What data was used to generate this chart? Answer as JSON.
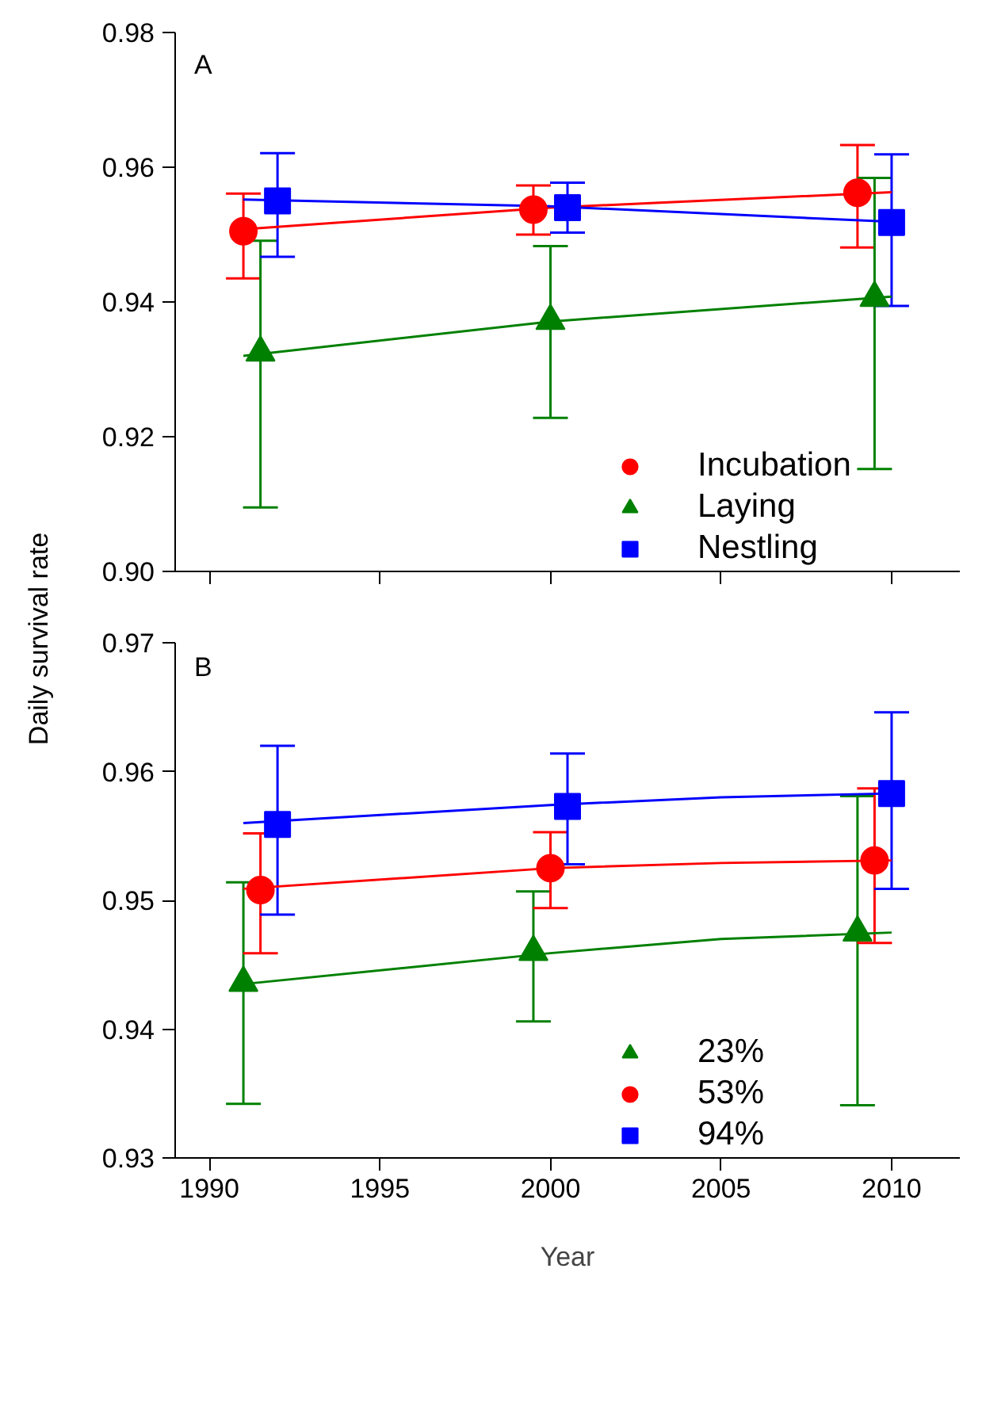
{
  "chart_data": [
    {
      "type": "line",
      "title": "A",
      "xlim": [
        1989,
        2012
      ],
      "xticks": [
        1990,
        1995,
        2000,
        2005,
        2010
      ],
      "ylim": [
        0.9,
        0.98
      ],
      "yticks": [
        {
          "value": 0.9,
          "label": "0.90"
        },
        {
          "value": 0.92,
          "label": "0.92"
        },
        {
          "value": 0.94,
          "label": "0.94"
        },
        {
          "value": 0.96,
          "label": "0.96"
        },
        {
          "value": 0.98,
          "label": "0.98"
        }
      ],
      "ylabel": "Daily survival rate",
      "tick_labels": "y",
      "legend": "bottom right",
      "grid": false,
      "series": [
        {
          "name": "Incubation",
          "type": "scatter",
          "marker": "circle",
          "color": "#ff0000",
          "x": [
            1991.0,
            1999.5,
            2009.0
          ],
          "values": [
            0.9505,
            0.9537,
            0.9562
          ],
          "errors": [
            [
              0.9435,
              0.9561
            ],
            [
              0.95,
              0.9573
            ],
            [
              0.9481,
              0.9633
            ]
          ]
        },
        {
          "name": "Laying",
          "type": "scatter",
          "marker": "triangle",
          "color": "#008000",
          "x": [
            1991.5,
            2000.0,
            2009.5
          ],
          "values": [
            0.9325,
            0.9372,
            0.9406
          ],
          "errors": [
            [
              0.9095,
              0.9491
            ],
            [
              0.9228,
              0.9483
            ],
            [
              0.9152,
              0.9584
            ]
          ]
        },
        {
          "name": "Nestling",
          "type": "scatter",
          "marker": "square",
          "color": "#0000ff",
          "x": [
            1992.0,
            2000.5,
            2010.0
          ],
          "values": [
            0.955,
            0.954,
            0.9518
          ],
          "errors": [
            [
              0.9467,
              0.9621
            ],
            [
              0.9503,
              0.9577
            ],
            [
              0.9394,
              0.9619
            ]
          ]
        },
        {
          "marker": "none",
          "color": "#ff0000",
          "x": [
            1991,
            2000,
            2010
          ],
          "values": [
            0.9508,
            0.954,
            0.9563
          ]
        },
        {
          "marker": "none",
          "color": "#008000",
          "x": [
            1991,
            2000,
            2010
          ],
          "values": [
            0.932,
            0.9371,
            0.9408
          ]
        },
        {
          "marker": "none",
          "color": "#0000ff",
          "x": [
            1991,
            2000,
            2010
          ],
          "values": [
            0.9552,
            0.9542,
            0.9519
          ]
        }
      ]
    },
    {
      "type": "line",
      "title": "B",
      "xlabel": "Year",
      "xlim": [
        1989,
        2012
      ],
      "xticks": [
        1990,
        1995,
        2000,
        2005,
        2010
      ],
      "ylim": [
        0.93,
        0.97
      ],
      "yticks": [
        {
          "value": 0.93,
          "label": "0.93"
        },
        {
          "value": 0.94,
          "label": "0.94"
        },
        {
          "value": 0.95,
          "label": "0.95"
        },
        {
          "value": 0.96,
          "label": "0.96"
        },
        {
          "value": 0.97,
          "label": "0.97"
        }
      ],
      "legend": "bottom right",
      "grid": false,
      "series": [
        {
          "name": "23%",
          "type": "scatter",
          "marker": "triangle",
          "color": "#008000",
          "x": [
            1991.0,
            1999.5,
            2009.0
          ],
          "values": [
            0.9436,
            0.946,
            0.9475
          ],
          "errors": [
            [
              0.9342,
              0.9514
            ],
            [
              0.9406,
              0.9507
            ],
            [
              0.9341,
              0.9581
            ]
          ]
        },
        {
          "name": "53%",
          "type": "scatter",
          "marker": "circle",
          "color": "#ff0000",
          "x": [
            1991.5,
            2000.0,
            2009.5
          ],
          "values": [
            0.9508,
            0.9525,
            0.9531
          ],
          "errors": [
            [
              0.9459,
              0.9552
            ],
            [
              0.9494,
              0.9553
            ],
            [
              0.9467,
              0.9587
            ]
          ]
        },
        {
          "name": "94%",
          "type": "scatter",
          "marker": "square",
          "color": "#0000ff",
          "x": [
            1992.0,
            2000.5,
            2010.0
          ],
          "values": [
            0.9559,
            0.9573,
            0.9583
          ],
          "errors": [
            [
              0.9489,
              0.962
            ],
            [
              0.9528,
              0.9614
            ],
            [
              0.9509,
              0.9646
            ]
          ]
        },
        {
          "marker": "none",
          "color": "#008000",
          "x": [
            1991,
            2000,
            2005,
            2010
          ],
          "values": [
            0.9435,
            0.9459,
            0.947,
            0.9475
          ]
        },
        {
          "marker": "none",
          "color": "#ff0000",
          "x": [
            1991,
            2000,
            2005,
            2010
          ],
          "values": [
            0.9509,
            0.9525,
            0.9529,
            0.9531
          ]
        },
        {
          "marker": "none",
          "color": "#0000ff",
          "x": [
            1991,
            2000,
            2005,
            2010
          ],
          "values": [
            0.956,
            0.9574,
            0.958,
            0.9583
          ]
        }
      ]
    }
  ]
}
